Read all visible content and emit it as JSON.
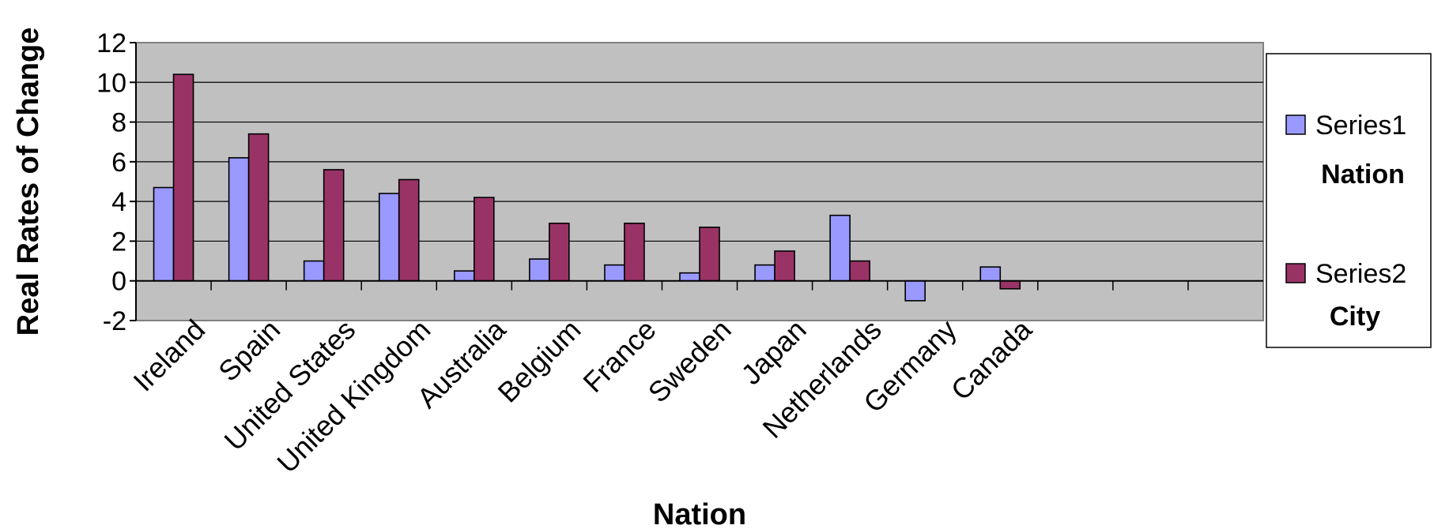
{
  "chart_data": {
    "type": "bar",
    "xlabel": "Nation",
    "ylabel": "Real Rates of Change",
    "ylim": [
      -2,
      12
    ],
    "yticks": [
      -2,
      0,
      2,
      4,
      6,
      8,
      10,
      12
    ],
    "grid": true,
    "legend_position": "right",
    "categories": [
      "Ireland",
      "Spain",
      "United States",
      "United Kingdom",
      "Australia",
      "Belgium",
      "France",
      "Sweden",
      "Japan",
      "Netherlands",
      "Germany",
      "Canada"
    ],
    "series": [
      {
        "name": "Series1",
        "sublabel": "Nation",
        "color": "#9999ff",
        "values": [
          4.7,
          6.2,
          1.0,
          4.4,
          0.5,
          1.1,
          0.8,
          0.4,
          0.8,
          3.3,
          -1.0,
          0.7
        ]
      },
      {
        "name": "Series2",
        "sublabel": "City",
        "color": "#993366",
        "values": [
          10.4,
          7.4,
          5.6,
          5.1,
          4.2,
          2.9,
          2.9,
          2.7,
          1.5,
          1.0,
          0.0,
          -0.4
        ]
      }
    ]
  }
}
